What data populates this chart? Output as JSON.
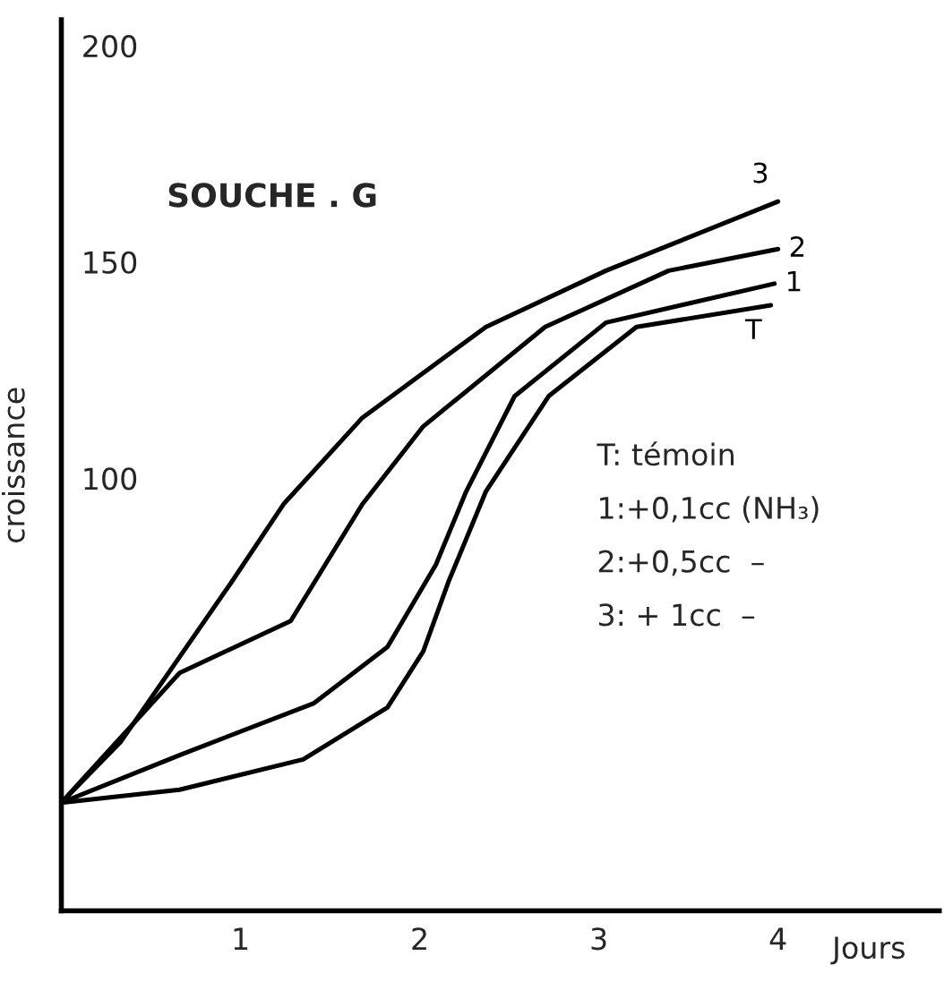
{
  "chart_data": {
    "type": "line",
    "title": "SOUCHE . G",
    "ylabel": "croissance",
    "xlabel": "Jours",
    "xlim": [
      0,
      4.9
    ],
    "xticks": [
      1,
      2,
      3,
      4
    ],
    "ylim": [
      0,
      206
    ],
    "yticks": [
      100,
      150,
      200
    ],
    "grid": false,
    "legend": false,
    "marker": "none",
    "line_style": "solid",
    "series": [
      {
        "name": "T",
        "color": "#000000",
        "x": [
          0,
          0.66,
          1.35,
          1.82,
          2.02,
          2.16,
          2.37,
          2.72,
          3.21,
          3.96
        ],
        "values": [
          25,
          28,
          35,
          47,
          60,
          76,
          97,
          119,
          135,
          140
        ]
      },
      {
        "name": "1",
        "color": "#000000",
        "x": [
          0,
          0.66,
          1.41,
          1.82,
          2.09,
          2.26,
          2.53,
          3.04,
          3.98
        ],
        "values": [
          25,
          36,
          48,
          61,
          80,
          97,
          119,
          136,
          145
        ]
      },
      {
        "name": "2",
        "color": "#000000",
        "x": [
          0,
          0.66,
          1.28,
          1.68,
          2.02,
          2.7,
          3.39,
          4.0
        ],
        "values": [
          25,
          55,
          67,
          94,
          112,
          135,
          148,
          153
        ]
      },
      {
        "name": "3",
        "color": "#000000",
        "x": [
          0,
          0.33,
          0.95,
          1.24,
          1.68,
          2.37,
          3.04,
          4.0
        ],
        "values": [
          25,
          39,
          76,
          94,
          114,
          135,
          148,
          164
        ]
      }
    ],
    "annotations": [
      "T: témoin",
      "1:+0,1cc (NH₃)",
      "2:+0,5cc  –",
      "3: + 1cc  –"
    ]
  }
}
